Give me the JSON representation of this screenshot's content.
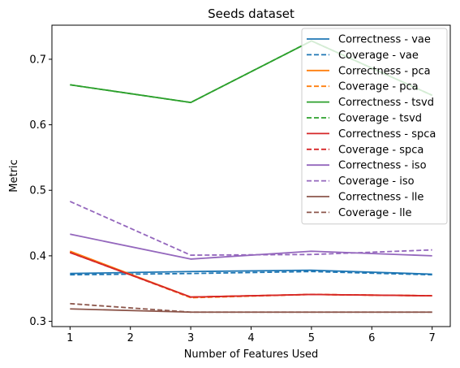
{
  "chart_data": {
    "type": "line",
    "title": "Seeds dataset",
    "xlabel": "Number of Features Used",
    "ylabel": "Metric",
    "xlim": [
      0.7,
      7.3
    ],
    "ylim": [
      0.292,
      0.752
    ],
    "xticks": [
      1,
      2,
      3,
      4,
      5,
      6,
      7
    ],
    "yticks": [
      0.3,
      0.4,
      0.5,
      0.6,
      0.7
    ],
    "x": [
      1,
      3,
      5,
      7
    ],
    "grid": false,
    "legend_position": "top-right",
    "series": [
      {
        "name": "Correctness - vae",
        "values": [
          0.373,
          0.376,
          0.378,
          0.372
        ],
        "color": "#1f77b4",
        "style": "solid"
      },
      {
        "name": "Coverage - vae",
        "values": [
          0.371,
          0.373,
          0.376,
          0.371
        ],
        "color": "#1f77b4",
        "style": "dashed"
      },
      {
        "name": "Correctness - pca",
        "values": [
          0.407,
          0.337,
          0.341,
          0.339
        ],
        "color": "#ff7f0e",
        "style": "solid"
      },
      {
        "name": "Coverage - pca",
        "values": [
          0.406,
          0.336,
          0.341,
          0.339
        ],
        "color": "#ff7f0e",
        "style": "dashed"
      },
      {
        "name": "Correctness - tsvd",
        "values": [
          0.661,
          0.634,
          0.728,
          0.645
        ],
        "color": "#2ca02c",
        "style": "solid"
      },
      {
        "name": "Coverage - tsvd",
        "values": [
          0.661,
          0.634,
          0.728,
          0.645
        ],
        "color": "#2ca02c",
        "style": "dashed"
      },
      {
        "name": "Correctness - spca",
        "values": [
          0.405,
          0.337,
          0.341,
          0.339
        ],
        "color": "#d62728",
        "style": "solid"
      },
      {
        "name": "Coverage - spca",
        "values": [
          0.405,
          0.337,
          0.341,
          0.339
        ],
        "color": "#d62728",
        "style": "dashed"
      },
      {
        "name": "Correctness - iso",
        "values": [
          0.433,
          0.395,
          0.407,
          0.4
        ],
        "color": "#9467bd",
        "style": "solid"
      },
      {
        "name": "Coverage - iso",
        "values": [
          0.483,
          0.401,
          0.402,
          0.409
        ],
        "color": "#9467bd",
        "style": "dashed"
      },
      {
        "name": "Correctness - lle",
        "values": [
          0.319,
          0.314,
          0.314,
          0.314
        ],
        "color": "#8c564b",
        "style": "solid"
      },
      {
        "name": "Coverage - lle",
        "values": [
          0.327,
          0.314,
          0.314,
          0.314
        ],
        "color": "#8c564b",
        "style": "dashed"
      }
    ]
  }
}
